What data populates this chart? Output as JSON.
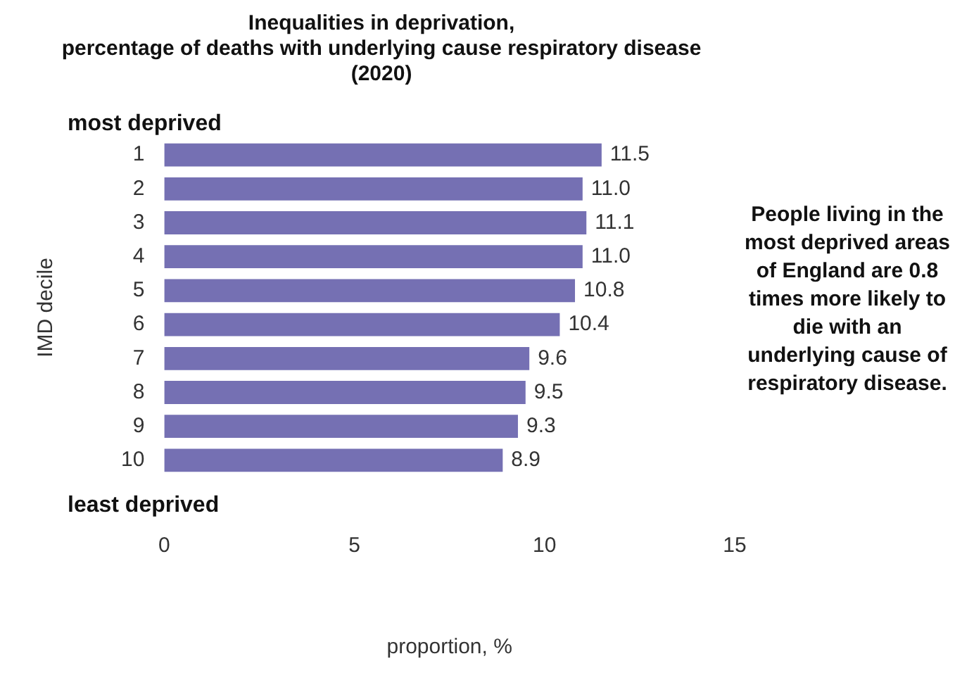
{
  "chart_data": {
    "type": "bar",
    "orientation": "horizontal",
    "title": "Inequalities in deprivation,\npercentage of deaths with underlying cause respiratory disease\n(2020)",
    "xlabel": "proportion, %",
    "ylabel": "IMD decile",
    "categories": [
      "1",
      "2",
      "3",
      "4",
      "5",
      "6",
      "7",
      "8",
      "9",
      "10"
    ],
    "values": [
      11.5,
      11.0,
      11.1,
      11.0,
      10.8,
      10.4,
      9.6,
      9.5,
      9.3,
      8.9
    ],
    "value_labels": [
      "11.5",
      "11.0",
      "11.1",
      "11.0",
      "10.8",
      "10.4",
      "9.6",
      "9.5",
      "9.3",
      "8.9"
    ],
    "color": "#7570b3",
    "xlim": [
      0,
      15
    ],
    "xticks": [
      0,
      5,
      10,
      15
    ],
    "grid": false,
    "legend": false,
    "annotations": [
      "most deprived",
      "least deprived",
      "People living in the most deprived areas of England are 0.8 times more likely to die with an underlying cause of respiratory disease."
    ]
  }
}
